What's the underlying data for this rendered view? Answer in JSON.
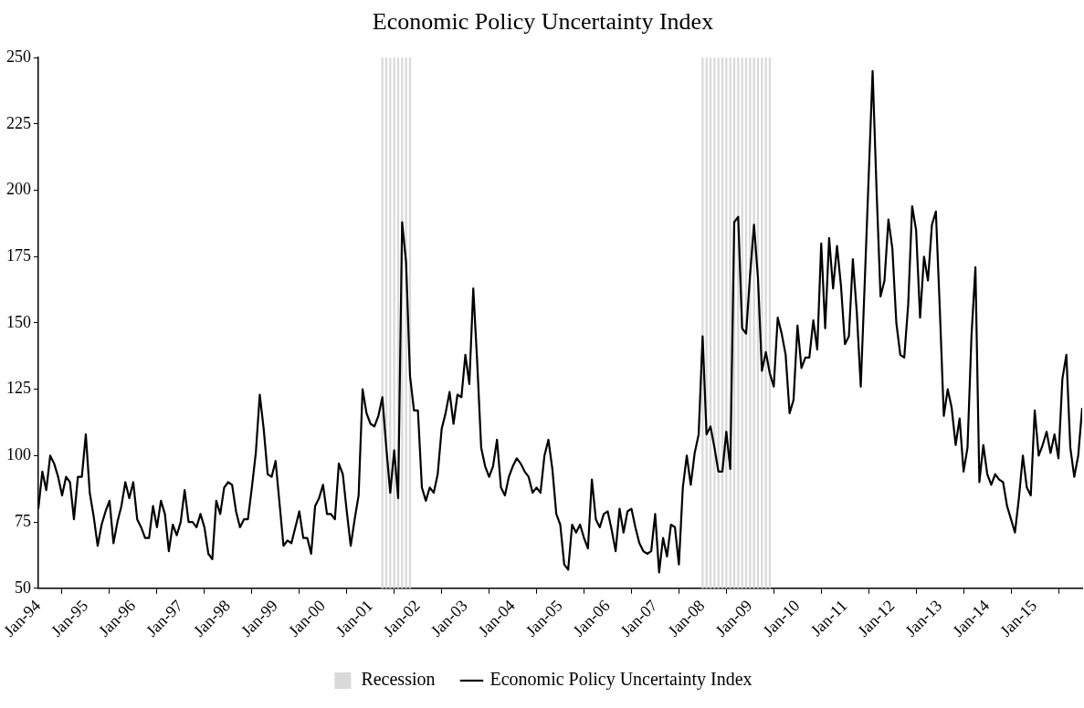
{
  "chart_data": {
    "type": "line",
    "title": "Economic Policy Uncertainty Index",
    "xlim": [
      "1994-01",
      "2016-01"
    ],
    "xticks": [
      {
        "value": "1994-01",
        "label": "Jan-94"
      },
      {
        "value": "1995-01",
        "label": "Jan-95"
      },
      {
        "value": "1996-01",
        "label": "Jan-96"
      },
      {
        "value": "1997-01",
        "label": "Jan-97"
      },
      {
        "value": "1998-01",
        "label": "Jan-98"
      },
      {
        "value": "1999-01",
        "label": "Jan-99"
      },
      {
        "value": "2000-01",
        "label": "Jan-00"
      },
      {
        "value": "2001-01",
        "label": "Jan-01"
      },
      {
        "value": "2002-01",
        "label": "Jan-02"
      },
      {
        "value": "2003-01",
        "label": "Jan-03"
      },
      {
        "value": "2004-01",
        "label": "Jan-04"
      },
      {
        "value": "2005-01",
        "label": "Jan-05"
      },
      {
        "value": "2006-01",
        "label": "Jan-06"
      },
      {
        "value": "2007-01",
        "label": "Jan-07"
      },
      {
        "value": "2008-01",
        "label": "Jan-08"
      },
      {
        "value": "2009-01",
        "label": "Jan-09"
      },
      {
        "value": "2010-01",
        "label": "Jan-10"
      },
      {
        "value": "2011-01",
        "label": "Jan-11"
      },
      {
        "value": "2012-01",
        "label": "Jan-12"
      },
      {
        "value": "2013-01",
        "label": "Jan-13"
      },
      {
        "value": "2014-01",
        "label": "Jan-14"
      },
      {
        "value": "2015-01",
        "label": "Jan-15"
      }
    ],
    "ylim": [
      50,
      250
    ],
    "yticks": [
      50,
      75,
      100,
      125,
      150,
      175,
      200,
      225,
      250
    ],
    "legend": "bottom",
    "marker": "none",
    "line_style": "solid",
    "series": [
      {
        "name": "Recession",
        "type": "bar",
        "color": "#d9d9d9",
        "x": [
          "2001-04",
          "2001-05",
          "2001-06",
          "2001-07",
          "2001-08",
          "2001-09",
          "2001-10",
          "2001-11",
          "2008-01",
          "2008-02",
          "2008-03",
          "2008-04",
          "2008-05",
          "2008-06",
          "2008-07",
          "2008-08",
          "2008-09",
          "2008-10",
          "2008-11",
          "2008-12",
          "2009-01",
          "2009-02",
          "2009-03",
          "2009-04",
          "2009-05",
          "2009-06"
        ],
        "values": [
          250,
          250,
          250,
          250,
          250,
          250,
          250,
          250,
          250,
          250,
          250,
          250,
          250,
          250,
          250,
          250,
          250,
          250,
          250,
          250,
          250,
          250,
          250,
          250,
          250,
          250
        ]
      },
      {
        "name": "Economic Policy Uncertainty Index",
        "color": "#000000",
        "x": [
          "1994-01",
          "1994-02",
          "1994-03",
          "1994-04",
          "1994-05",
          "1994-06",
          "1994-07",
          "1994-08",
          "1994-09",
          "1994-10",
          "1994-11",
          "1994-12",
          "1995-01",
          "1995-02",
          "1995-03",
          "1995-04",
          "1995-05",
          "1995-06",
          "1995-07",
          "1995-08",
          "1995-09",
          "1995-10",
          "1995-11",
          "1995-12",
          "1996-01",
          "1996-02",
          "1996-03",
          "1996-04",
          "1996-05",
          "1996-06",
          "1996-07",
          "1996-08",
          "1996-09",
          "1996-10",
          "1996-11",
          "1996-12",
          "1997-01",
          "1997-02",
          "1997-03",
          "1997-04",
          "1997-05",
          "1997-06",
          "1997-07",
          "1997-08",
          "1997-09",
          "1997-10",
          "1997-11",
          "1997-12",
          "1998-01",
          "1998-02",
          "1998-03",
          "1998-04",
          "1998-05",
          "1998-06",
          "1998-07",
          "1998-08",
          "1998-09",
          "1998-10",
          "1998-11",
          "1998-12",
          "1999-01",
          "1999-02",
          "1999-03",
          "1999-04",
          "1999-05",
          "1999-06",
          "1999-07",
          "1999-08",
          "1999-09",
          "1999-10",
          "1999-11",
          "1999-12",
          "2000-01",
          "2000-02",
          "2000-03",
          "2000-04",
          "2000-05",
          "2000-06",
          "2000-07",
          "2000-08",
          "2000-09",
          "2000-10",
          "2000-11",
          "2000-12",
          "2001-01",
          "2001-02",
          "2001-03",
          "2001-04",
          "2001-05",
          "2001-06",
          "2001-07",
          "2001-08",
          "2001-09",
          "2001-10",
          "2001-11",
          "2001-12",
          "2002-01",
          "2002-02",
          "2002-03",
          "2002-04",
          "2002-05",
          "2002-06",
          "2002-07",
          "2002-08",
          "2002-09",
          "2002-10",
          "2002-11",
          "2002-12",
          "2003-01",
          "2003-02",
          "2003-03",
          "2003-04",
          "2003-05",
          "2003-06",
          "2003-07",
          "2003-08",
          "2003-09",
          "2003-10",
          "2003-11",
          "2003-12",
          "2004-01",
          "2004-02",
          "2004-03",
          "2004-04",
          "2004-05",
          "2004-06",
          "2004-07",
          "2004-08",
          "2004-09",
          "2004-10",
          "2004-11",
          "2004-12",
          "2005-01",
          "2005-02",
          "2005-03",
          "2005-04",
          "2005-05",
          "2005-06",
          "2005-07",
          "2005-08",
          "2005-09",
          "2005-10",
          "2005-11",
          "2005-12",
          "2006-01",
          "2006-02",
          "2006-03",
          "2006-04",
          "2006-05",
          "2006-06",
          "2006-07",
          "2006-08",
          "2006-09",
          "2006-10",
          "2006-11",
          "2006-12",
          "2007-01",
          "2007-02",
          "2007-03",
          "2007-04",
          "2007-05",
          "2007-06",
          "2007-07",
          "2007-08",
          "2007-09",
          "2007-10",
          "2007-11",
          "2007-12",
          "2008-01",
          "2008-02",
          "2008-03",
          "2008-04",
          "2008-05",
          "2008-06",
          "2008-07",
          "2008-08",
          "2008-09",
          "2008-10",
          "2008-11",
          "2008-12",
          "2009-01",
          "2009-02",
          "2009-03",
          "2009-04",
          "2009-05",
          "2009-06",
          "2009-07",
          "2009-08",
          "2009-09",
          "2009-10",
          "2009-11",
          "2009-12",
          "2010-01",
          "2010-02",
          "2010-03",
          "2010-04",
          "2010-05",
          "2010-06",
          "2010-07",
          "2010-08",
          "2010-09",
          "2010-10",
          "2010-11",
          "2010-12",
          "2011-01",
          "2011-02",
          "2011-03",
          "2011-04",
          "2011-05",
          "2011-06",
          "2011-07",
          "2011-08",
          "2011-09",
          "2011-10",
          "2011-11",
          "2011-12",
          "2012-01",
          "2012-02",
          "2012-03",
          "2012-04",
          "2012-05",
          "2012-06",
          "2012-07",
          "2012-08",
          "2012-09",
          "2012-10",
          "2012-11",
          "2012-12",
          "2013-01",
          "2013-02",
          "2013-03",
          "2013-04",
          "2013-05",
          "2013-06",
          "2013-07",
          "2013-08",
          "2013-09",
          "2013-10",
          "2013-11",
          "2013-12",
          "2014-01",
          "2014-02",
          "2014-03",
          "2014-04",
          "2014-05",
          "2014-06",
          "2014-07",
          "2014-08",
          "2014-09",
          "2014-10",
          "2014-11",
          "2014-12",
          "2015-01",
          "2015-02",
          "2015-03",
          "2015-04",
          "2015-05",
          "2015-06",
          "2015-07",
          "2015-08",
          "2015-09",
          "2015-10",
          "2015-11",
          "2015-12",
          "2016-01"
        ],
        "values": [
          80,
          94,
          87,
          100,
          97,
          92,
          85,
          92,
          90,
          76,
          92,
          92,
          108,
          86,
          77,
          66,
          74,
          79,
          83,
          67,
          75,
          81,
          90,
          84,
          90,
          76,
          73,
          69,
          69,
          81,
          73,
          83,
          78,
          64,
          74,
          70,
          75,
          87,
          75,
          75,
          73,
          78,
          73,
          63,
          61,
          83,
          78,
          88,
          90,
          89,
          79,
          73,
          76,
          76,
          88,
          101,
          123,
          110,
          93,
          92,
          98,
          82,
          66,
          68,
          67,
          73,
          79,
          69,
          69,
          63,
          81,
          84,
          89,
          78,
          78,
          76,
          97,
          93,
          79,
          66,
          76,
          85,
          125,
          116,
          112,
          111,
          115,
          122,
          103,
          86,
          102,
          84,
          188,
          173,
          130,
          117,
          117,
          88,
          83,
          88,
          86,
          93,
          110,
          116,
          124,
          112,
          123,
          122,
          138,
          127,
          163,
          135,
          103,
          96,
          92,
          96,
          106,
          88,
          85,
          92,
          96,
          99,
          97,
          94,
          92,
          86,
          88,
          86,
          100,
          106,
          95,
          78,
          74,
          59,
          57,
          74,
          71,
          74,
          69,
          65,
          91,
          76,
          73,
          78,
          79,
          72,
          64,
          80,
          71,
          79,
          80,
          73,
          67,
          64,
          63,
          64,
          78,
          56,
          69,
          62,
          74,
          73,
          59,
          88,
          100,
          89,
          101,
          108,
          145,
          108,
          111,
          103,
          94,
          94,
          109,
          95,
          188,
          190,
          148,
          146,
          168,
          187,
          167,
          132,
          139,
          131,
          126,
          152,
          146,
          138,
          116,
          121,
          149,
          133,
          137,
          137,
          151,
          140,
          180,
          148,
          182,
          163,
          179,
          164,
          142,
          145,
          174,
          154,
          126,
          165,
          205,
          245,
          200,
          160,
          166,
          189,
          178,
          150,
          138,
          137,
          157,
          194,
          185,
          152,
          175,
          166,
          187,
          192,
          155,
          115,
          125,
          118,
          104,
          114,
          94,
          103,
          145,
          171,
          90,
          104,
          93,
          89,
          93,
          91,
          90,
          81,
          76,
          71,
          84,
          100,
          88,
          85,
          117,
          100,
          104,
          109,
          101,
          108,
          99,
          129,
          138,
          103,
          92,
          100,
          118
        ]
      }
    ]
  }
}
